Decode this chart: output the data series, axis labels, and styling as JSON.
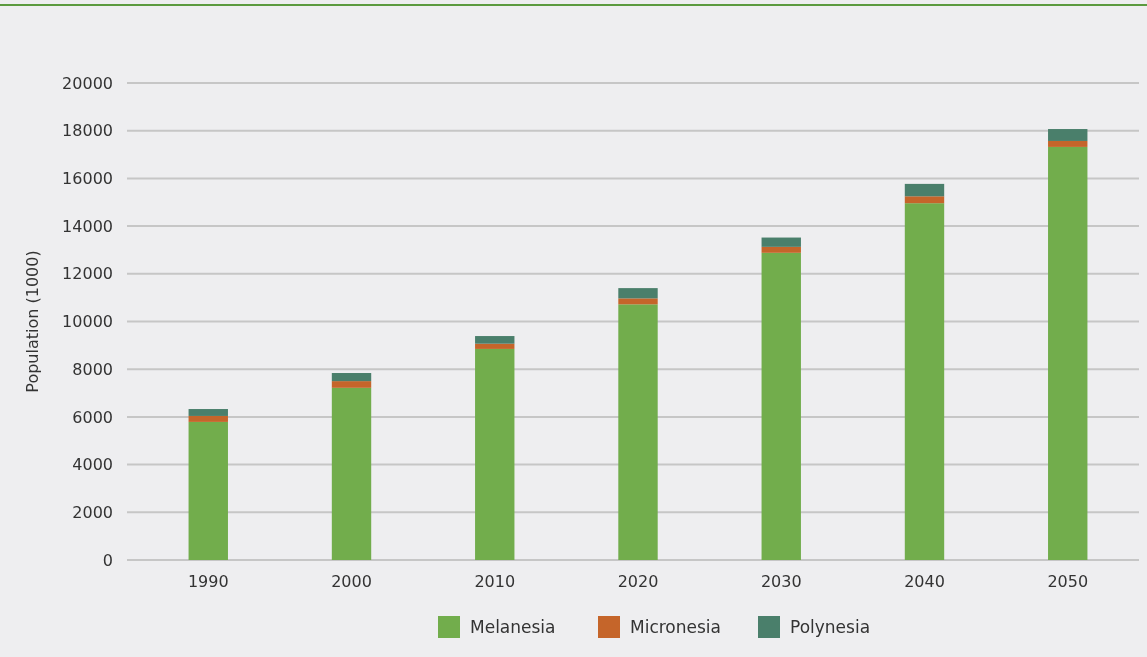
{
  "chart_data": {
    "type": "bar",
    "stacked": true,
    "ylabel": "Population (1000)",
    "categories": [
      "1990",
      "2000",
      "2010",
      "2020",
      "2030",
      "2040",
      "2050"
    ],
    "series": [
      {
        "name": "Melanesia",
        "color": "#72ad4c",
        "values": [
          5790,
          7220,
          8850,
          10720,
          12880,
          14960,
          17320
        ]
      },
      {
        "name": "Micronesia",
        "color": "#c5652a",
        "values": [
          250,
          280,
          220,
          250,
          250,
          290,
          250
        ]
      },
      {
        "name": "Polynesia",
        "color": "#4a7f6b",
        "values": [
          290,
          340,
          320,
          430,
          390,
          520,
          500
        ]
      }
    ],
    "ylim": [
      0,
      20000
    ],
    "yticks": [
      0,
      2000,
      4000,
      6000,
      8000,
      10000,
      12000,
      14000,
      16000,
      18000,
      20000
    ],
    "grid": "y",
    "legend": "bottom"
  }
}
